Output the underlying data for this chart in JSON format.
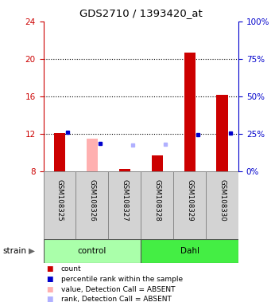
{
  "title": "GDS2710 / 1393420_at",
  "samples": [
    "GSM108325",
    "GSM108326",
    "GSM108327",
    "GSM108328",
    "GSM108329",
    "GSM108330"
  ],
  "groups": [
    "control",
    "control",
    "control",
    "Dahl",
    "Dahl",
    "Dahl"
  ],
  "ylim_left": [
    8,
    24
  ],
  "ylim_right": [
    0,
    100
  ],
  "yticks_left": [
    8,
    12,
    16,
    20,
    24
  ],
  "yticks_right": [
    0,
    25,
    50,
    75,
    100
  ],
  "ytick_labels_right": [
    "0%",
    "25%",
    "50%",
    "75%",
    "100%"
  ],
  "red_values": [
    12.1,
    11.5,
    8.3,
    9.7,
    20.7,
    16.2
  ],
  "red_absent": [
    false,
    true,
    false,
    false,
    false,
    false
  ],
  "blue_values": [
    12.2,
    11.0,
    10.8,
    10.9,
    11.9,
    12.1
  ],
  "blue_absent": [
    false,
    false,
    true,
    true,
    false,
    false
  ],
  "bar_width": 0.35,
  "red_color": "#cc0000",
  "red_absent_color": "#ffb0b0",
  "blue_color": "#0000cc",
  "blue_absent_color": "#b0b0ff",
  "group_control_color": "#aaffaa",
  "group_dahl_color": "#44ee44",
  "axis_left_color": "#cc0000",
  "axis_right_color": "#0000cc",
  "grid_dotted_at": [
    12,
    16,
    20
  ]
}
